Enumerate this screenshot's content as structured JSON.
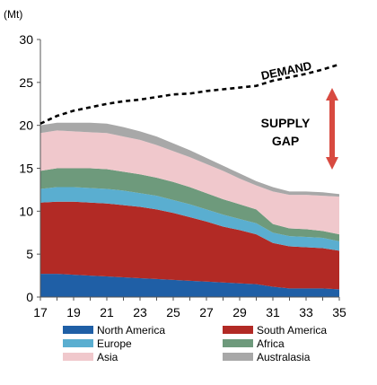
{
  "chart_data": {
    "type": "area",
    "stacked": true,
    "unit_label": "(Mt)",
    "title": "",
    "xlabel": "",
    "ylabel": "",
    "x": [
      17,
      18,
      19,
      20,
      21,
      22,
      23,
      24,
      25,
      26,
      27,
      28,
      29,
      30,
      31,
      32,
      33,
      34,
      35
    ],
    "x_ticks": [
      "17",
      "19",
      "21",
      "23",
      "25",
      "27",
      "29",
      "31",
      "33",
      "35"
    ],
    "ylim": [
      0,
      30
    ],
    "y_ticks": [
      "0",
      "5",
      "10",
      "15",
      "20",
      "25",
      "30"
    ],
    "grid": false,
    "legend_position": "bottom",
    "series": [
      {
        "name": "North America",
        "color": "#1f5fa6",
        "values": [
          2.7,
          2.7,
          2.6,
          2.5,
          2.4,
          2.3,
          2.2,
          2.1,
          2.0,
          1.9,
          1.8,
          1.7,
          1.6,
          1.5,
          1.2,
          1.0,
          1.0,
          1.0,
          0.9
        ]
      },
      {
        "name": "South America",
        "color": "#b22a25",
        "values": [
          8.3,
          8.4,
          8.5,
          8.5,
          8.5,
          8.4,
          8.3,
          8.1,
          7.8,
          7.4,
          7.0,
          6.5,
          6.2,
          5.8,
          5.1,
          4.9,
          4.8,
          4.7,
          4.5
        ]
      },
      {
        "name": "Europe",
        "color": "#5aaed0",
        "values": [
          1.6,
          1.7,
          1.7,
          1.7,
          1.7,
          1.7,
          1.6,
          1.6,
          1.5,
          1.5,
          1.4,
          1.4,
          1.3,
          1.3,
          1.2,
          1.2,
          1.2,
          1.2,
          1.1
        ]
      },
      {
        "name": "Africa",
        "color": "#6e9a7c",
        "values": [
          2.1,
          2.2,
          2.2,
          2.3,
          2.3,
          2.2,
          2.2,
          2.1,
          2.1,
          2.0,
          1.9,
          1.8,
          1.7,
          1.6,
          1.0,
          0.9,
          0.9,
          0.8,
          0.8
        ]
      },
      {
        "name": "Asia",
        "color": "#f0c8cc",
        "values": [
          4.4,
          4.4,
          4.3,
          4.2,
          4.2,
          4.1,
          4.0,
          3.8,
          3.6,
          3.5,
          3.4,
          3.3,
          3.0,
          2.8,
          3.8,
          3.9,
          4.0,
          4.1,
          4.4
        ]
      },
      {
        "name": "Australasia",
        "color": "#a8a8a8",
        "values": [
          0.9,
          0.9,
          1.0,
          1.1,
          1.1,
          1.1,
          1.0,
          1.0,
          0.9,
          0.8,
          0.7,
          0.6,
          0.6,
          0.5,
          0.5,
          0.4,
          0.4,
          0.4,
          0.3
        ]
      }
    ],
    "demand": {
      "label": "DEMAND",
      "values": [
        20.2,
        21.1,
        21.7,
        22.1,
        22.5,
        22.8,
        23.0,
        23.3,
        23.6,
        23.7,
        24.0,
        24.2,
        24.4,
        24.6,
        25.2,
        25.6,
        26.0,
        26.5,
        27.1
      ]
    },
    "annotation": {
      "line1": "SUPPLY",
      "line2": "GAP",
      "arrow_color": "#d84a40"
    },
    "axis_color": "#555555"
  }
}
